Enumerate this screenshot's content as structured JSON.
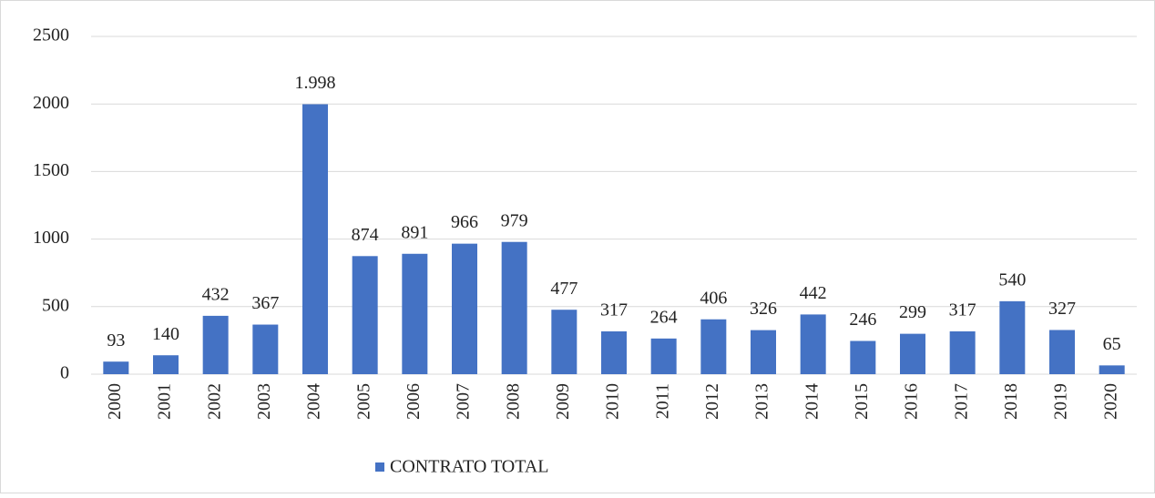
{
  "chart_data": {
    "type": "bar",
    "categories": [
      "2000",
      "2001",
      "2002",
      "2003",
      "2004",
      "2005",
      "2006",
      "2007",
      "2008",
      "2009",
      "2010",
      "2011",
      "2012",
      "2013",
      "2014",
      "2015",
      "2016",
      "2017",
      "2018",
      "2019",
      "2020"
    ],
    "series": [
      {
        "name": "CONTRATO TOTAL",
        "color": "#4472c4",
        "values": [
          93,
          140,
          432,
          367,
          1998,
          874,
          891,
          966,
          979,
          477,
          317,
          264,
          406,
          326,
          442,
          246,
          299,
          317,
          540,
          327,
          65
        ],
        "value_labels": [
          "93",
          "140",
          "432",
          "367",
          "1.998",
          "874",
          "891",
          "966",
          "979",
          "477",
          "317",
          "264",
          "406",
          "326",
          "442",
          "246",
          "299",
          "317",
          "540",
          "327",
          "65"
        ]
      }
    ],
    "ylim": [
      0,
      2500
    ],
    "yticks": [
      0,
      500,
      1000,
      1500,
      2000,
      2500
    ],
    "grid": true,
    "legend": "bottom"
  }
}
